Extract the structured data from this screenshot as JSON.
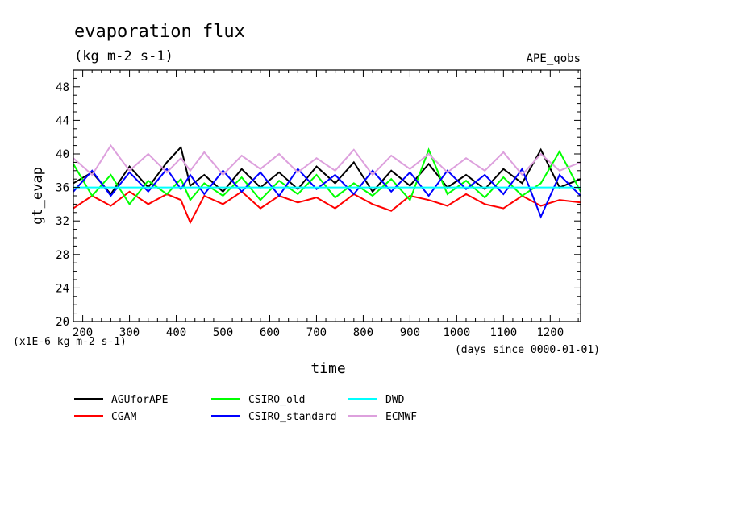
{
  "chart_data": {
    "type": "line",
    "title": "evaporation flux",
    "subtitle": "(kg m-2 s-1)",
    "experiment": "APE_qobs",
    "xlabel": "time",
    "ylabel": "gt_evap",
    "y_unit_note": "(x1E-6 kg m-2 s-1)",
    "x_unit_note": "(days since 0000-01-01)",
    "xlim": [
      180,
      1265
    ],
    "ylim": [
      20,
      50
    ],
    "x_ticks": [
      200,
      300,
      400,
      500,
      600,
      700,
      800,
      900,
      1000,
      1100,
      1200
    ],
    "y_ticks": [
      20,
      24,
      28,
      32,
      36,
      40,
      44,
      48
    ],
    "grid": false,
    "legend_position": "bottom",
    "series": [
      {
        "name": "AGUforAPE",
        "color": "#000000",
        "x": [
          180,
          220,
          260,
          300,
          340,
          380,
          410,
          430,
          460,
          500,
          540,
          580,
          620,
          660,
          700,
          740,
          780,
          820,
          860,
          900,
          940,
          980,
          1020,
          1060,
          1100,
          1140,
          1180,
          1220,
          1265
        ],
        "y": [
          36.5,
          37.8,
          35.2,
          38.5,
          36.0,
          39.0,
          40.8,
          36.2,
          37.5,
          35.5,
          38.2,
          36.0,
          37.8,
          35.8,
          38.5,
          36.5,
          39.0,
          35.5,
          38.0,
          36.2,
          38.8,
          36.0,
          37.5,
          35.8,
          38.2,
          36.5,
          40.5,
          36.0,
          37.0
        ]
      },
      {
        "name": "CGAM",
        "color": "#ff0000",
        "x": [
          180,
          220,
          260,
          300,
          340,
          380,
          410,
          430,
          460,
          500,
          540,
          580,
          620,
          660,
          700,
          740,
          780,
          820,
          860,
          900,
          940,
          980,
          1020,
          1060,
          1100,
          1140,
          1180,
          1220,
          1265
        ],
        "y": [
          33.5,
          35.0,
          33.8,
          35.5,
          34.0,
          35.2,
          34.5,
          31.8,
          35.0,
          34.0,
          35.5,
          33.5,
          35.0,
          34.2,
          34.8,
          33.5,
          35.2,
          34.0,
          33.2,
          35.0,
          34.5,
          33.8,
          35.2,
          34.0,
          33.5,
          35.0,
          33.8,
          34.5,
          34.2
        ]
      },
      {
        "name": "CSIRO_old",
        "color": "#00ff00",
        "x": [
          180,
          220,
          260,
          300,
          340,
          380,
          410,
          430,
          460,
          500,
          540,
          580,
          620,
          660,
          700,
          740,
          780,
          820,
          860,
          900,
          940,
          980,
          1020,
          1060,
          1100,
          1140,
          1180,
          1220,
          1265
        ],
        "y": [
          38.8,
          35.0,
          37.5,
          34.0,
          36.8,
          35.2,
          37.0,
          34.5,
          36.5,
          35.0,
          37.2,
          34.5,
          36.8,
          35.2,
          37.5,
          34.8,
          36.5,
          35.0,
          37.0,
          34.5,
          40.5,
          35.2,
          36.8,
          34.8,
          37.2,
          35.0,
          36.5,
          40.3,
          35.5
        ]
      },
      {
        "name": "CSIRO_standard",
        "color": "#0000ff",
        "x": [
          180,
          220,
          260,
          300,
          340,
          380,
          410,
          430,
          460,
          500,
          540,
          580,
          620,
          660,
          700,
          740,
          780,
          820,
          860,
          900,
          940,
          980,
          1020,
          1060,
          1100,
          1140,
          1180,
          1220,
          1265
        ],
        "y": [
          35.5,
          38.0,
          35.0,
          37.8,
          35.5,
          38.2,
          35.8,
          37.5,
          35.2,
          38.0,
          35.5,
          37.8,
          35.0,
          38.2,
          35.8,
          37.5,
          35.2,
          38.0,
          35.5,
          37.8,
          35.0,
          38.0,
          35.8,
          37.5,
          35.2,
          38.2,
          32.5,
          37.5,
          35.0
        ]
      },
      {
        "name": "DWD",
        "color": "#00ffff",
        "x": [
          180,
          1265
        ],
        "y": [
          36.0,
          36.0
        ]
      },
      {
        "name": "ECMWF",
        "color": "#dda0dd",
        "x": [
          180,
          220,
          260,
          300,
          340,
          380,
          410,
          430,
          460,
          500,
          540,
          580,
          620,
          660,
          700,
          740,
          780,
          820,
          860,
          900,
          940,
          980,
          1020,
          1060,
          1100,
          1140,
          1180,
          1220,
          1265
        ],
        "y": [
          39.5,
          37.5,
          41.0,
          38.0,
          40.0,
          37.8,
          39.5,
          38.0,
          40.2,
          37.5,
          39.8,
          38.2,
          40.0,
          37.8,
          39.5,
          38.0,
          40.5,
          37.5,
          39.8,
          38.2,
          40.0,
          37.8,
          39.5,
          38.0,
          40.2,
          37.5,
          40.0,
          38.0,
          39.0
        ]
      }
    ]
  }
}
